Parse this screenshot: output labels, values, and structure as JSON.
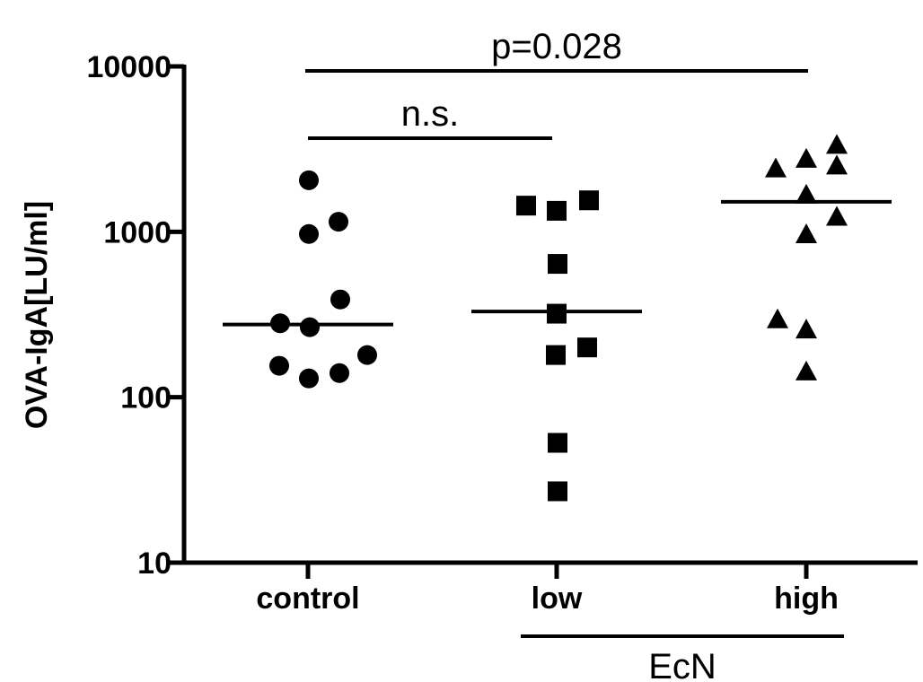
{
  "chart_data": {
    "type": "scatter",
    "title": "",
    "xlabel": "",
    "ylabel": "OVA-IgA[LU/ml]",
    "yscale": "log",
    "ylim": [
      10,
      10000
    ],
    "yticks": [
      10,
      100,
      1000,
      10000
    ],
    "ytick_labels": [
      "10",
      "100",
      "1000",
      "10000"
    ],
    "grid": false,
    "categories": [
      "control",
      "low",
      "high"
    ],
    "series": [
      {
        "category": "control",
        "marker": "circle",
        "values": [
          2050,
          1150,
          970,
          390,
          280,
          265,
          180,
          155,
          140,
          130
        ],
        "median": 275
      },
      {
        "category": "low",
        "marker": "square",
        "values": [
          1550,
          1440,
          1340,
          640,
          320,
          200,
          180,
          53,
          27
        ],
        "median": 330
      },
      {
        "category": "high",
        "marker": "triangle",
        "values": [
          3400,
          2800,
          2550,
          2450,
          1700,
          1250,
          980,
          300,
          260,
          145
        ],
        "median": 1520
      }
    ],
    "group_label": {
      "text": "EcN",
      "categories": [
        "low",
        "high"
      ]
    },
    "annotations": [
      {
        "text": "n.s.",
        "from": "control",
        "to": "low"
      },
      {
        "text": "p=0.028",
        "from": "control",
        "to": "high"
      }
    ],
    "color": "#000000"
  }
}
